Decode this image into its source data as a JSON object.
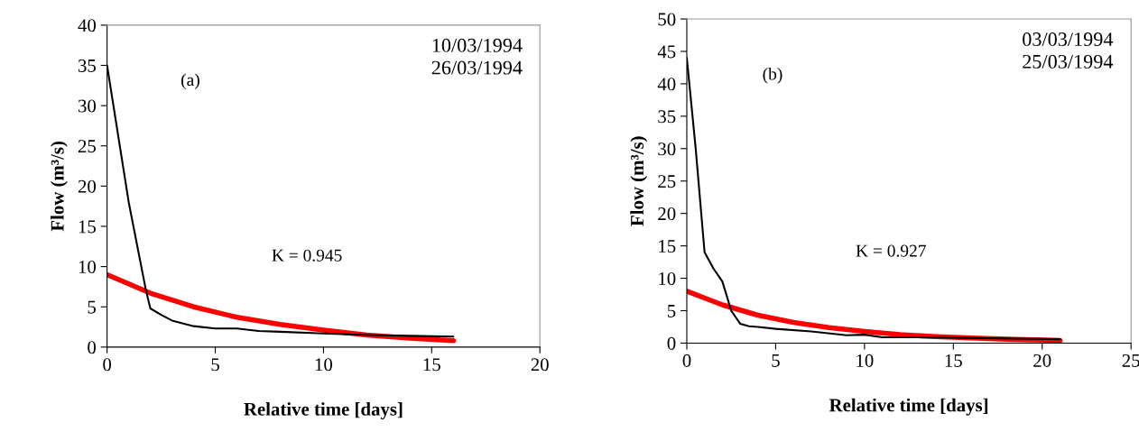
{
  "chart_data": [
    {
      "type": "line",
      "xlabel": "Relative time [days]",
      "ylabel": "Flow (m³/s)",
      "xlim": [
        0,
        20
      ],
      "xticks": [
        0,
        5,
        10,
        15,
        20
      ],
      "ylim": [
        0,
        40
      ],
      "yticks": [
        0,
        5,
        10,
        15,
        20,
        25,
        30,
        35,
        40
      ],
      "grid": false,
      "legend": false,
      "annotations": [
        "10/03/1994\n26/03/1994",
        "(a)",
        "K = 0.945"
      ],
      "series": [
        {
          "color": "#000000",
          "x": [
            0,
            1,
            1.8,
            2,
            2.5,
            3,
            4,
            5,
            6,
            7,
            8,
            10,
            12,
            14,
            16
          ],
          "values": [
            35,
            18,
            7,
            4.8,
            4,
            3.3,
            2.6,
            2.3,
            2.3,
            2,
            1.9,
            1.7,
            1.5,
            1.4,
            1.3
          ]
        },
        {
          "color": "#ff0000",
          "x": [
            0,
            2,
            4,
            6,
            8,
            10,
            12,
            14,
            16
          ],
          "values": [
            9,
            6.7,
            5,
            3.7,
            2.8,
            2.1,
            1.5,
            1.1,
            0.8
          ]
        }
      ]
    },
    {
      "type": "line",
      "xlabel": "Relative time [days]",
      "ylabel": "Flow (m³/s)",
      "xlim": [
        0,
        25
      ],
      "xticks": [
        0,
        5,
        10,
        15,
        20,
        25
      ],
      "ylim": [
        0,
        50
      ],
      "yticks": [
        0,
        5,
        10,
        15,
        20,
        25,
        30,
        35,
        40,
        45,
        50
      ],
      "grid": false,
      "legend": false,
      "annotations": [
        "03/03/1994\n25/03/1994",
        "(b)",
        "K = 0.927"
      ],
      "series": [
        {
          "color": "#000000",
          "x": [
            0,
            0.5,
            1,
            1.5,
            2,
            2.5,
            3,
            3.5,
            4,
            5,
            7,
            9,
            10,
            11,
            13,
            21
          ],
          "values": [
            44,
            30,
            14,
            11.5,
            9.5,
            5,
            3,
            2.6,
            2.5,
            2.2,
            1.8,
            1.2,
            1.3,
            0.9,
            0.9,
            0.6
          ]
        },
        {
          "color": "#ff0000",
          "x": [
            0,
            2,
            4,
            6,
            8,
            10,
            12,
            14,
            16,
            18,
            21
          ],
          "values": [
            8,
            5.9,
            4.3,
            3.2,
            2.4,
            1.8,
            1.3,
            1,
            0.8,
            0.6,
            0.4
          ]
        }
      ]
    }
  ]
}
